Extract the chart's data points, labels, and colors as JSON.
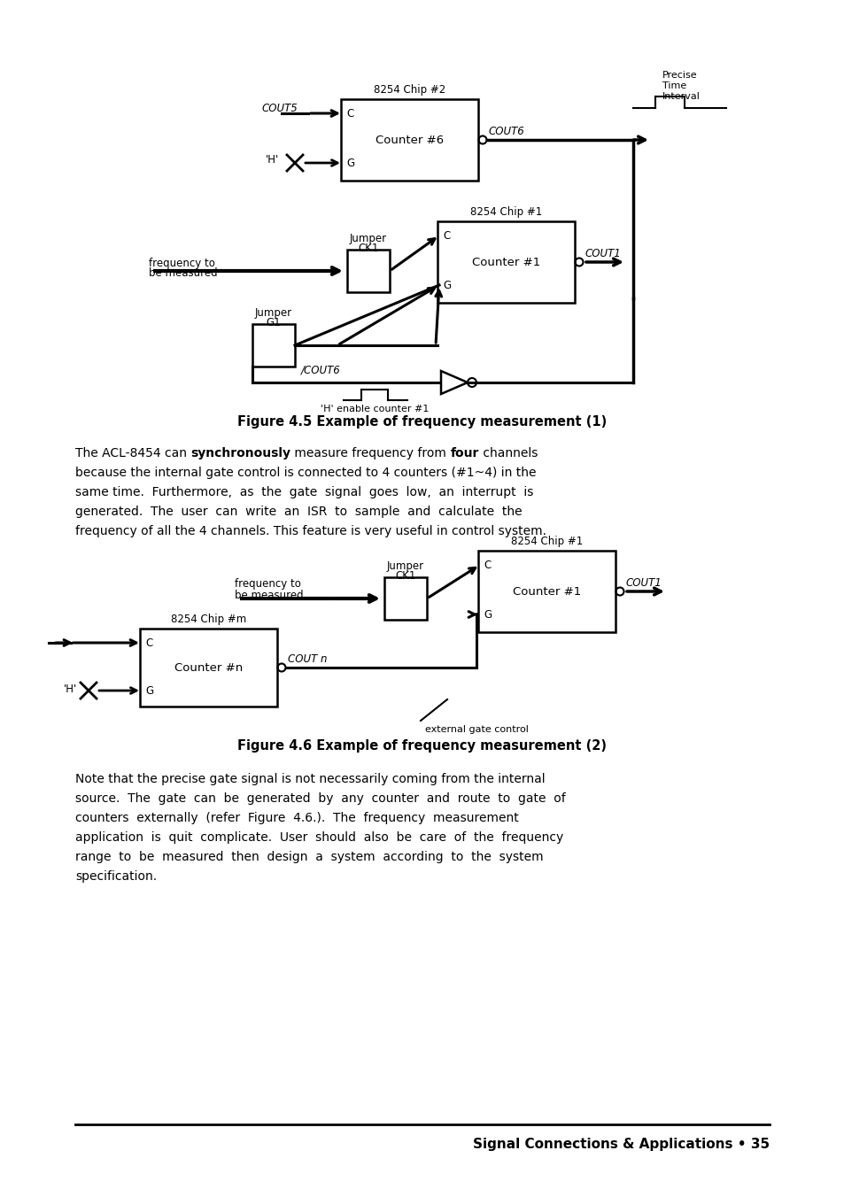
{
  "bg_color": "#ffffff",
  "page_width": 9.54,
  "page_height": 13.52,
  "fig1_caption": "Figure 4.5 Example of frequency measurement (1)",
  "fig2_caption": "Figure 4.6 Example of frequency measurement (2)",
  "footer": "Signal Connections & Applications • 35",
  "p1_parts": [
    [
      "The ACL-8454 can ",
      false
    ],
    [
      "synchronously",
      true
    ],
    [
      " measure frequency from ",
      false
    ],
    [
      "four",
      true
    ],
    [
      " channels",
      false
    ],
    [
      "\nbecause the internal gate control is connected to 4 counters (#1~4) in the",
      false
    ],
    [
      "\nsame time.  Furthermore,  as  the  gate  signal  goes  low,  an  interrupt  is",
      false
    ],
    [
      "\ngenerated.  The  user  can  write  an  ISR  to  sample  and  calculate  the",
      false
    ],
    [
      "\nfrequency of all the 4 channels. This feature is very useful in control system.",
      false
    ]
  ],
  "p2_lines": [
    "Note that the precise gate signal is not necessarily coming from the internal",
    "source.  The  gate  can  be  generated  by  any  counter  and  route  to  gate  of",
    "counters  externally  (refer  Figure  4.6.).  The  frequency  measurement",
    "application  is  quit  complicate.  User  should  also  be  care  of  the  frequency",
    "range  to  be  measured  then  design  a  system  according  to  the  system",
    "specification."
  ]
}
